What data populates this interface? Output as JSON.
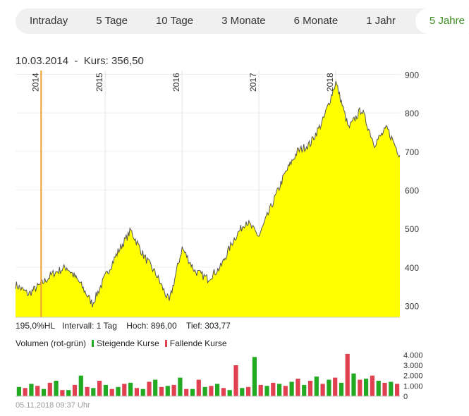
{
  "tabs": [
    {
      "label": "Intraday",
      "active": false
    },
    {
      "label": "5 Tage",
      "active": false
    },
    {
      "label": "10 Tage",
      "active": false
    },
    {
      "label": "3 Monate",
      "active": false
    },
    {
      "label": "6 Monate",
      "active": false
    },
    {
      "label": "1 Jahr",
      "active": false
    },
    {
      "label": "5 Jahre",
      "active": true
    }
  ],
  "header": {
    "date": "10.03.2014",
    "separator": "-",
    "price_label": "Kurs:",
    "price_value": "356,50"
  },
  "stats": {
    "hl": "195,0%HL",
    "interval": "Intervall: 1 Tag",
    "high": "Hoch: 896,00",
    "low": "Tief: 303,77"
  },
  "volume_legend": {
    "label": "Volumen (rot-grün)",
    "rising": "Steigende Kurse",
    "falling": "Fallende Kurse"
  },
  "footer": {
    "timestamp": "05.11.2018 09:37 Uhr"
  },
  "colors": {
    "area_fill": "#ffff00",
    "line": "#555555",
    "cursor": "#f0a030",
    "volume_up": "#22aa22",
    "volume_down": "#e04050",
    "active_tab": "#3a8a1f"
  },
  "chart_data": [
    {
      "type": "area",
      "x": [
        "2013-11",
        "2014-01",
        "2014-03",
        "2014-05",
        "2014-07",
        "2014-09",
        "2014-11",
        "2015-01",
        "2015-03",
        "2015-05",
        "2015-07",
        "2015-09",
        "2015-11",
        "2016-01",
        "2016-03",
        "2016-05",
        "2016-07",
        "2016-09",
        "2016-11",
        "2017-01",
        "2017-03",
        "2017-05",
        "2017-07",
        "2017-09",
        "2017-11",
        "2018-01",
        "2018-03",
        "2018-05",
        "2018-07",
        "2018-09",
        "2018-11"
      ],
      "y": [
        355,
        330,
        356,
        385,
        400,
        360,
        305,
        375,
        440,
        495,
        430,
        380,
        310,
        450,
        390,
        370,
        400,
        470,
        520,
        480,
        560,
        640,
        700,
        720,
        780,
        880,
        760,
        810,
        720,
        760,
        690
      ],
      "x_tick_labels": [
        "2014",
        "2015",
        "2016",
        "2017",
        "2018"
      ],
      "x_tick_positions": [
        "2014-03",
        "2015-01",
        "2016-01",
        "2017-01",
        "2018-01"
      ],
      "y_ticks": [
        300,
        400,
        500,
        600,
        700,
        800,
        900
      ],
      "ylim": [
        270,
        910
      ],
      "cursor_x": "2014-03",
      "grid": true
    },
    {
      "type": "bar",
      "title": "Volumen (rot-grün)",
      "y_ticks": [
        "0",
        "1.000",
        "2.000",
        "3.000",
        "4.000"
      ],
      "y_tick_values": [
        0,
        1000,
        2000,
        3000,
        4000
      ],
      "ylim": [
        0,
        4500
      ],
      "series": [
        {
          "name": "Steigende Kurse",
          "values": [
            900,
            1200,
            700,
            1500,
            600,
            2000,
            800,
            1100,
            900,
            1300,
            700,
            1600,
            1000,
            1800,
            700,
            900,
            1200,
            600,
            800,
            3800,
            1000,
            1200,
            1400,
            1100,
            1900,
            1600,
            1300,
            2200,
            1700,
            1500,
            1400
          ]
        },
        {
          "name": "Fallende Kurse",
          "values": [
            800,
            1000,
            1300,
            600,
            1100,
            900,
            1500,
            700,
            1200,
            800,
            1400,
            900,
            1100,
            700,
            1600,
            1000,
            800,
            3000,
            900,
            1100,
            1300,
            1000,
            1700,
            1500,
            1200,
            1800,
            4100,
            1600,
            2000,
            1300,
            1200
          ]
        }
      ]
    }
  ]
}
